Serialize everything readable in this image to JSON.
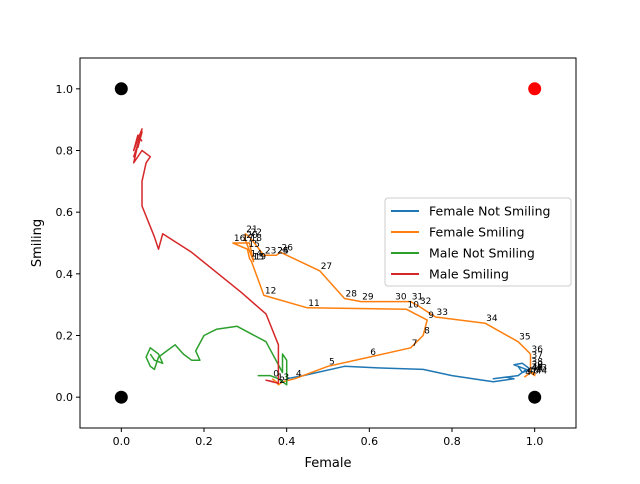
{
  "chart_data": {
    "type": "line",
    "title": "",
    "xlabel": "Female",
    "ylabel": "Smiling",
    "xlim": [
      -0.1,
      1.1
    ],
    "ylim": [
      -0.1,
      1.1
    ],
    "xticks": [
      "0.0",
      "0.2",
      "0.4",
      "0.6",
      "0.8",
      "1.0"
    ],
    "yticks": [
      "0.0",
      "0.2",
      "0.4",
      "0.6",
      "0.8",
      "1.0"
    ],
    "grid": false,
    "legend_position": "center-right",
    "corner_points": [
      {
        "x": 0,
        "y": 1,
        "color": "#000000"
      },
      {
        "x": 1,
        "y": 1,
        "color": "#ff0000"
      },
      {
        "x": 0,
        "y": 0,
        "color": "#000000"
      },
      {
        "x": 1,
        "y": 0,
        "color": "#000000"
      }
    ],
    "series": [
      {
        "name": "Female Not Smiling",
        "color": "#1f77b4",
        "x": [
          0.4,
          0.44,
          0.54,
          0.62,
          0.73,
          0.8,
          0.9,
          0.95,
          0.93,
          0.9,
          0.96,
          0.98,
          0.95,
          0.97,
          0.99,
          0.97,
          0.96,
          0.98,
          1.0
        ],
        "y": [
          0.06,
          0.07,
          0.1,
          0.095,
          0.09,
          0.07,
          0.05,
          0.06,
          0.065,
          0.06,
          0.07,
          0.09,
          0.105,
          0.11,
          0.09,
          0.08,
          0.1,
          0.09,
          0.08
        ]
      },
      {
        "name": "Female Smiling",
        "color": "#ff7f0e",
        "x": [
          0.365,
          0.375,
          0.38,
          0.39,
          0.42,
          0.5,
          0.6,
          0.7,
          0.73,
          0.74,
          0.69,
          0.45,
          0.345,
          0.315,
          0.31,
          0.305,
          0.27,
          0.29,
          0.31,
          0.32,
          0.3,
          0.3,
          0.31,
          0.345,
          0.375,
          0.375,
          0.385,
          0.48,
          0.54,
          0.58,
          0.66,
          0.7,
          0.72,
          0.76,
          0.88,
          0.96,
          0.99,
          0.99,
          0.99,
          0.99,
          0.99,
          0.99,
          0.99,
          1.0,
          1.0,
          0.99,
          0.98,
          0.975
        ],
        "y": [
          0.06,
          0.05,
          0.04,
          0.05,
          0.06,
          0.1,
          0.13,
          0.16,
          0.2,
          0.25,
          0.285,
          0.29,
          0.33,
          0.44,
          0.45,
          0.48,
          0.5,
          0.5,
          0.5,
          0.44,
          0.51,
          0.53,
          0.52,
          0.46,
          0.46,
          0.46,
          0.47,
          0.41,
          0.32,
          0.31,
          0.31,
          0.31,
          0.295,
          0.26,
          0.24,
          0.18,
          0.14,
          0.12,
          0.1,
          0.09,
          0.08,
          0.08,
          0.08,
          0.08,
          0.07,
          0.08,
          0.07,
          0.065
        ],
        "point_labels": [
          "0",
          "1",
          "2",
          "3",
          "4",
          "5",
          "6",
          "7",
          "8",
          "9",
          "10",
          "11",
          "12",
          "13",
          "14",
          "15",
          "16",
          "17",
          "18",
          "19",
          "20",
          "21",
          "22",
          "23",
          "24",
          "25",
          "26",
          "27",
          "28",
          "29",
          "30",
          "31",
          "32",
          "33",
          "34",
          "35",
          "36",
          "37",
          "38",
          "39",
          "40",
          "41",
          "42",
          "43",
          "44",
          "45",
          "46",
          "47"
        ]
      },
      {
        "name": "Male Not Smiling",
        "color": "#2ca02c",
        "x": [
          0.33,
          0.36,
          0.38,
          0.4,
          0.4,
          0.39,
          0.39,
          0.35,
          0.28,
          0.23,
          0.2,
          0.18,
          0.19,
          0.17,
          0.15,
          0.13,
          0.11,
          0.09,
          0.08,
          0.07,
          0.06,
          0.07,
          0.09,
          0.1,
          0.08,
          0.07
        ],
        "y": [
          0.07,
          0.07,
          0.06,
          0.04,
          0.12,
          0.14,
          0.08,
          0.18,
          0.23,
          0.22,
          0.2,
          0.15,
          0.12,
          0.12,
          0.14,
          0.17,
          0.15,
          0.13,
          0.09,
          0.1,
          0.13,
          0.16,
          0.14,
          0.11,
          0.12,
          0.14
        ]
      },
      {
        "name": "Male Smiling",
        "color": "#d62728",
        "x": [
          0.37,
          0.35,
          0.38,
          0.38,
          0.35,
          0.29,
          0.17,
          0.1,
          0.09,
          0.08,
          0.05,
          0.05,
          0.06,
          0.07,
          0.05,
          0.03,
          0.04,
          0.03,
          0.05,
          0.04,
          0.05,
          0.03,
          0.04,
          0.05
        ],
        "y": [
          0.05,
          0.055,
          0.045,
          0.17,
          0.27,
          0.34,
          0.47,
          0.53,
          0.48,
          0.52,
          0.62,
          0.7,
          0.76,
          0.78,
          0.8,
          0.76,
          0.82,
          0.78,
          0.86,
          0.81,
          0.87,
          0.8,
          0.85,
          0.83
        ]
      }
    ]
  }
}
